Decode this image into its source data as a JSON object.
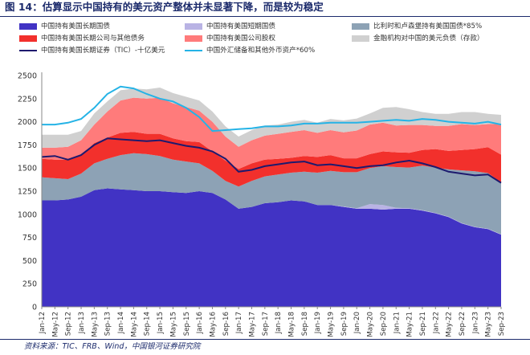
{
  "title": "图 14：估算显示中国持有的美元资产整体并未显著下降，而是较为稳定",
  "source": "资料来源：TIC、FRB、Wind，中国银河证券研究院",
  "legend": [
    {
      "label": "中国持有美国长期国债",
      "color": "#4133c4",
      "kind": "area"
    },
    {
      "label": "中国持有美国短期国债",
      "color": "#b9b3e4",
      "kind": "area"
    },
    {
      "label": "比利时和卢森堡持有美国国债*85%",
      "color": "#8da2b5",
      "kind": "area"
    },
    {
      "label": "中国持有美国长期公司与其他债务",
      "color": "#f2302c",
      "kind": "area"
    },
    {
      "label": "中国持有美国公司股权",
      "color": "#ff7b7b",
      "kind": "area"
    },
    {
      "label": "金融机构对中国的美元负债（存款）",
      "color": "#d0d0d0",
      "kind": "area"
    },
    {
      "label": "中国持有美国长期证券（TIC）-十亿美元",
      "color": "#1e1a6e",
      "kind": "line"
    },
    {
      "label": "中国外汇储备和其他外币资产*60%",
      "color": "#25b3e6",
      "kind": "line"
    }
  ],
  "chart_data": {
    "type": "area",
    "stacked": true,
    "ylim": [
      0,
      2500
    ],
    "yticks": [
      0,
      250,
      500,
      750,
      1000,
      1250,
      1500,
      1750,
      2000,
      2250,
      2500
    ],
    "xtick_labels": [
      "Jan-12",
      "May-12",
      "Sep-12",
      "Jan-13",
      "May-13",
      "Sep-13",
      "Jan-14",
      "May-14",
      "Sep-14",
      "Jan-15",
      "May-15",
      "Sep-15",
      "Jan-16",
      "May-16",
      "Sep-16",
      "Jan-17",
      "May-17",
      "Sep-17",
      "Jan-18",
      "May-18",
      "Sep-18",
      "Jan-19",
      "May-19",
      "Sep-19",
      "Jan-20",
      "May-20",
      "Sep-20",
      "Jan-21",
      "May-21",
      "Sep-21",
      "Jan-22",
      "May-22",
      "Sep-22",
      "Jan-23",
      "May-23",
      "Sep-23"
    ],
    "stack_series": [
      {
        "name": "中国持有美国长期国债",
        "color": "#4133c4",
        "values": [
          1150,
          1150,
          1160,
          1190,
          1260,
          1280,
          1270,
          1260,
          1250,
          1250,
          1240,
          1230,
          1250,
          1230,
          1160,
          1060,
          1080,
          1120,
          1130,
          1150,
          1140,
          1100,
          1100,
          1080,
          1060,
          1060,
          1050,
          1060,
          1060,
          1040,
          1010,
          970,
          900,
          860,
          840,
          780
        ]
      },
      {
        "name": "中国持有美国短期国债",
        "color": "#b9b3e4",
        "values": [
          0,
          0,
          0,
          0,
          0,
          0,
          0,
          0,
          0,
          0,
          0,
          0,
          0,
          0,
          0,
          0,
          0,
          0,
          0,
          0,
          0,
          0,
          0,
          5,
          5,
          50,
          50,
          10,
          5,
          5,
          5,
          5,
          5,
          5,
          5,
          5
        ]
      },
      {
        "name": "比利时和卢森堡持有美国国债*85%",
        "color": "#8da2b5",
        "values": [
          250,
          240,
          220,
          250,
          290,
          320,
          370,
          400,
          400,
          380,
          350,
          340,
          300,
          240,
          200,
          240,
          280,
          290,
          300,
          300,
          320,
          350,
          370,
          370,
          390,
          390,
          420,
          440,
          440,
          480,
          490,
          510,
          570,
          600,
          600,
          560
        ]
      },
      {
        "name": "中国持有美国长期公司与其他债务",
        "color": "#f2302c",
        "values": [
          200,
          200,
          210,
          200,
          220,
          230,
          240,
          230,
          220,
          240,
          230,
          220,
          230,
          210,
          220,
          190,
          190,
          180,
          170,
          160,
          170,
          170,
          170,
          150,
          150,
          150,
          160,
          160,
          160,
          170,
          200,
          200,
          220,
          240,
          280,
          300
        ]
      },
      {
        "name": "中国持有美国公司股权",
        "color": "#ff7b7b",
        "values": [
          120,
          130,
          140,
          160,
          200,
          280,
          350,
          370,
          380,
          390,
          380,
          370,
          340,
          320,
          260,
          240,
          250,
          260,
          270,
          280,
          280,
          260,
          270,
          280,
          300,
          320,
          310,
          290,
          300,
          270,
          250,
          270,
          280,
          260,
          250,
          330
        ]
      },
      {
        "name": "金融机构对中国的美元负债（存款）",
        "color": "#d0d0d0",
        "values": [
          140,
          140,
          130,
          100,
          120,
          110,
          110,
          100,
          100,
          110,
          110,
          110,
          110,
          110,
          110,
          110,
          110,
          110,
          100,
          110,
          110,
          110,
          120,
          130,
          130,
          120,
          160,
          200,
          170,
          140,
          130,
          130,
          130,
          140,
          110,
          100
        ]
      }
    ],
    "line_series": [
      {
        "name": "中国持有美国长期证券（TIC）-十亿美元",
        "color": "#1e1a6e",
        "values": [
          1620,
          1630,
          1590,
          1640,
          1750,
          1820,
          1810,
          1800,
          1790,
          1800,
          1770,
          1740,
          1720,
          1680,
          1600,
          1460,
          1480,
          1520,
          1540,
          1560,
          1570,
          1530,
          1540,
          1520,
          1500,
          1520,
          1530,
          1560,
          1580,
          1550,
          1510,
          1460,
          1440,
          1420,
          1430,
          1340
        ]
      },
      {
        "name": "中国外汇储备和其他外币资产*60%",
        "color": "#25b3e6",
        "values": [
          1970,
          1970,
          1990,
          2030,
          2150,
          2300,
          2380,
          2360,
          2300,
          2250,
          2220,
          2150,
          2050,
          1900,
          1910,
          1920,
          1930,
          1950,
          1950,
          1960,
          1980,
          1980,
          1990,
          1990,
          1990,
          2000,
          2010,
          2020,
          2010,
          2030,
          2020,
          2000,
          1990,
          1980,
          2000,
          1970
        ]
      }
    ]
  }
}
